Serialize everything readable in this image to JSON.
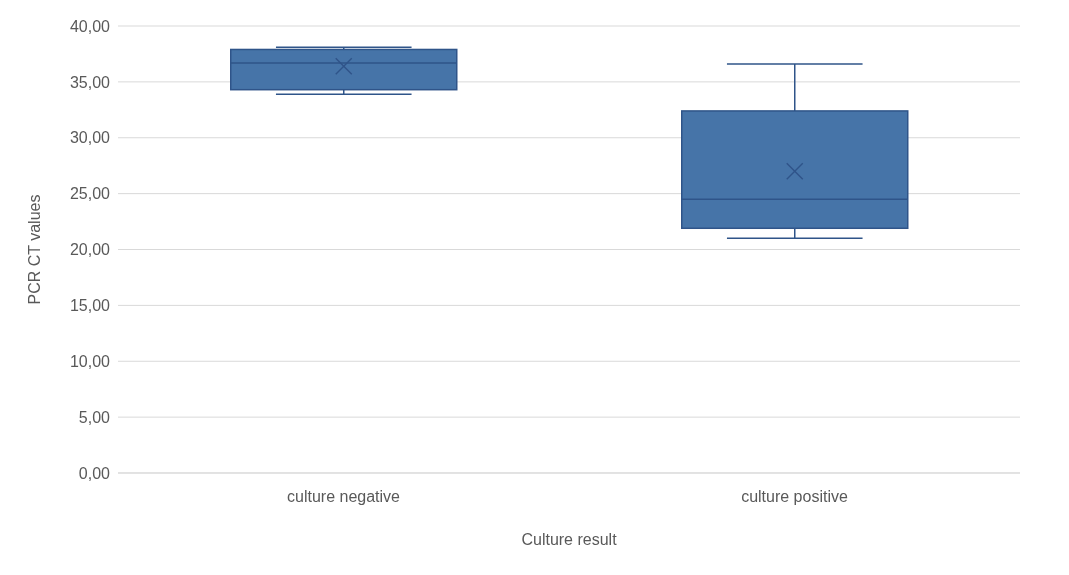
{
  "chart_data": {
    "type": "box",
    "xlabel": "Culture result",
    "ylabel": "PCR CT values",
    "categories": [
      "culture negative",
      "culture positive"
    ],
    "boxes": [
      {
        "low": 33.9,
        "q1": 34.3,
        "median": 36.7,
        "q3": 37.9,
        "high": 38.1,
        "mean": 36.4
      },
      {
        "low": 21.0,
        "q1": 21.9,
        "median": 24.5,
        "q3": 32.4,
        "high": 36.6,
        "mean": 27.0
      }
    ],
    "color": "#4674a8",
    "ylim": [
      0,
      40
    ],
    "yticks": [
      {
        "value": 0,
        "label": "0,00"
      },
      {
        "value": 5,
        "label": "5,00"
      },
      {
        "value": 10,
        "label": "10,00"
      },
      {
        "value": 15,
        "label": "15,00"
      },
      {
        "value": 20,
        "label": "20,00"
      },
      {
        "value": 25,
        "label": "25,00"
      },
      {
        "value": 30,
        "label": "30,00"
      },
      {
        "value": 35,
        "label": "35,00"
      },
      {
        "value": 40,
        "label": "40,00"
      }
    ],
    "grid": "y"
  }
}
